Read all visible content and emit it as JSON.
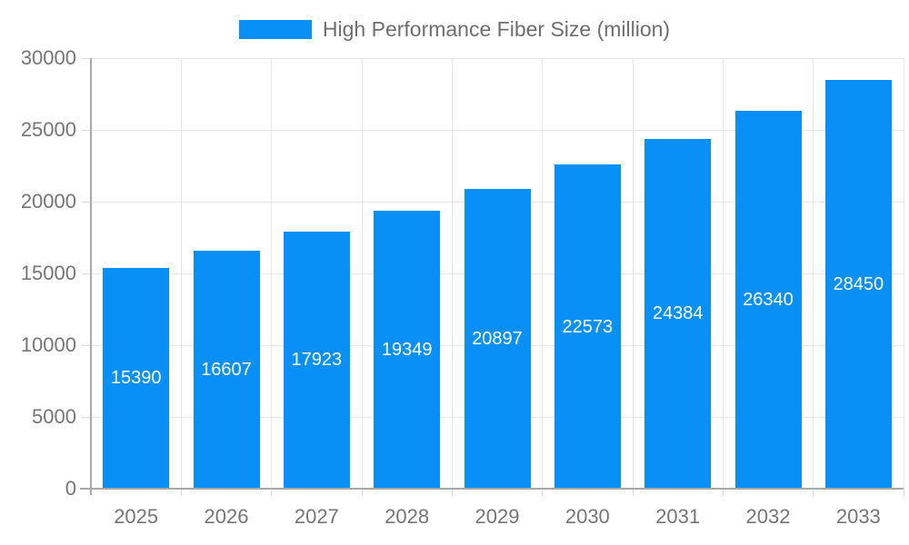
{
  "chart_data": {
    "type": "bar",
    "title": "High Performance Fiber Size (million)",
    "categories": [
      "2025",
      "2026",
      "2027",
      "2028",
      "2029",
      "2030",
      "2031",
      "2032",
      "2033"
    ],
    "values": [
      15390,
      16607,
      17923,
      19349,
      20897,
      22573,
      24384,
      26340,
      28450
    ],
    "xlabel": "",
    "ylabel": "",
    "ylim": [
      0,
      30000
    ],
    "ytick_step": 5000,
    "yticks": [
      0,
      5000,
      10000,
      15000,
      20000,
      25000,
      30000
    ],
    "grid": true,
    "legend_position": "top",
    "bar_labels_inside": true,
    "colors": {
      "bar": "#0890f6",
      "bar_label": "#ffffff",
      "gridline": "#e7e7e7",
      "tick": "#dcdcdc",
      "axis_line": "#a8a8a8",
      "tick_text": "#757575",
      "legend_text": "#6e6e6e",
      "background": "#ffffff"
    }
  }
}
